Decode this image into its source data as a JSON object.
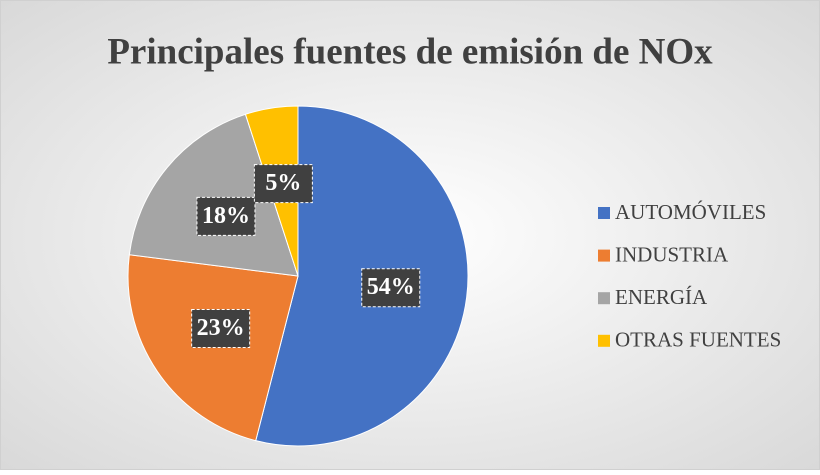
{
  "chart_data": {
    "type": "pie",
    "title": "Principales fuentes de emisión de NOx",
    "categories": [
      "AUTOMÓVILES",
      "INDUSTRIA",
      "ENERGÍA",
      "OTRAS FUENTES"
    ],
    "values": [
      54,
      23,
      18,
      5
    ],
    "value_labels": [
      "54%",
      "23%",
      "18%",
      "5%"
    ],
    "colors": [
      "#4472c4",
      "#ed7d31",
      "#a5a5a5",
      "#ffc000"
    ],
    "legend": "right"
  }
}
